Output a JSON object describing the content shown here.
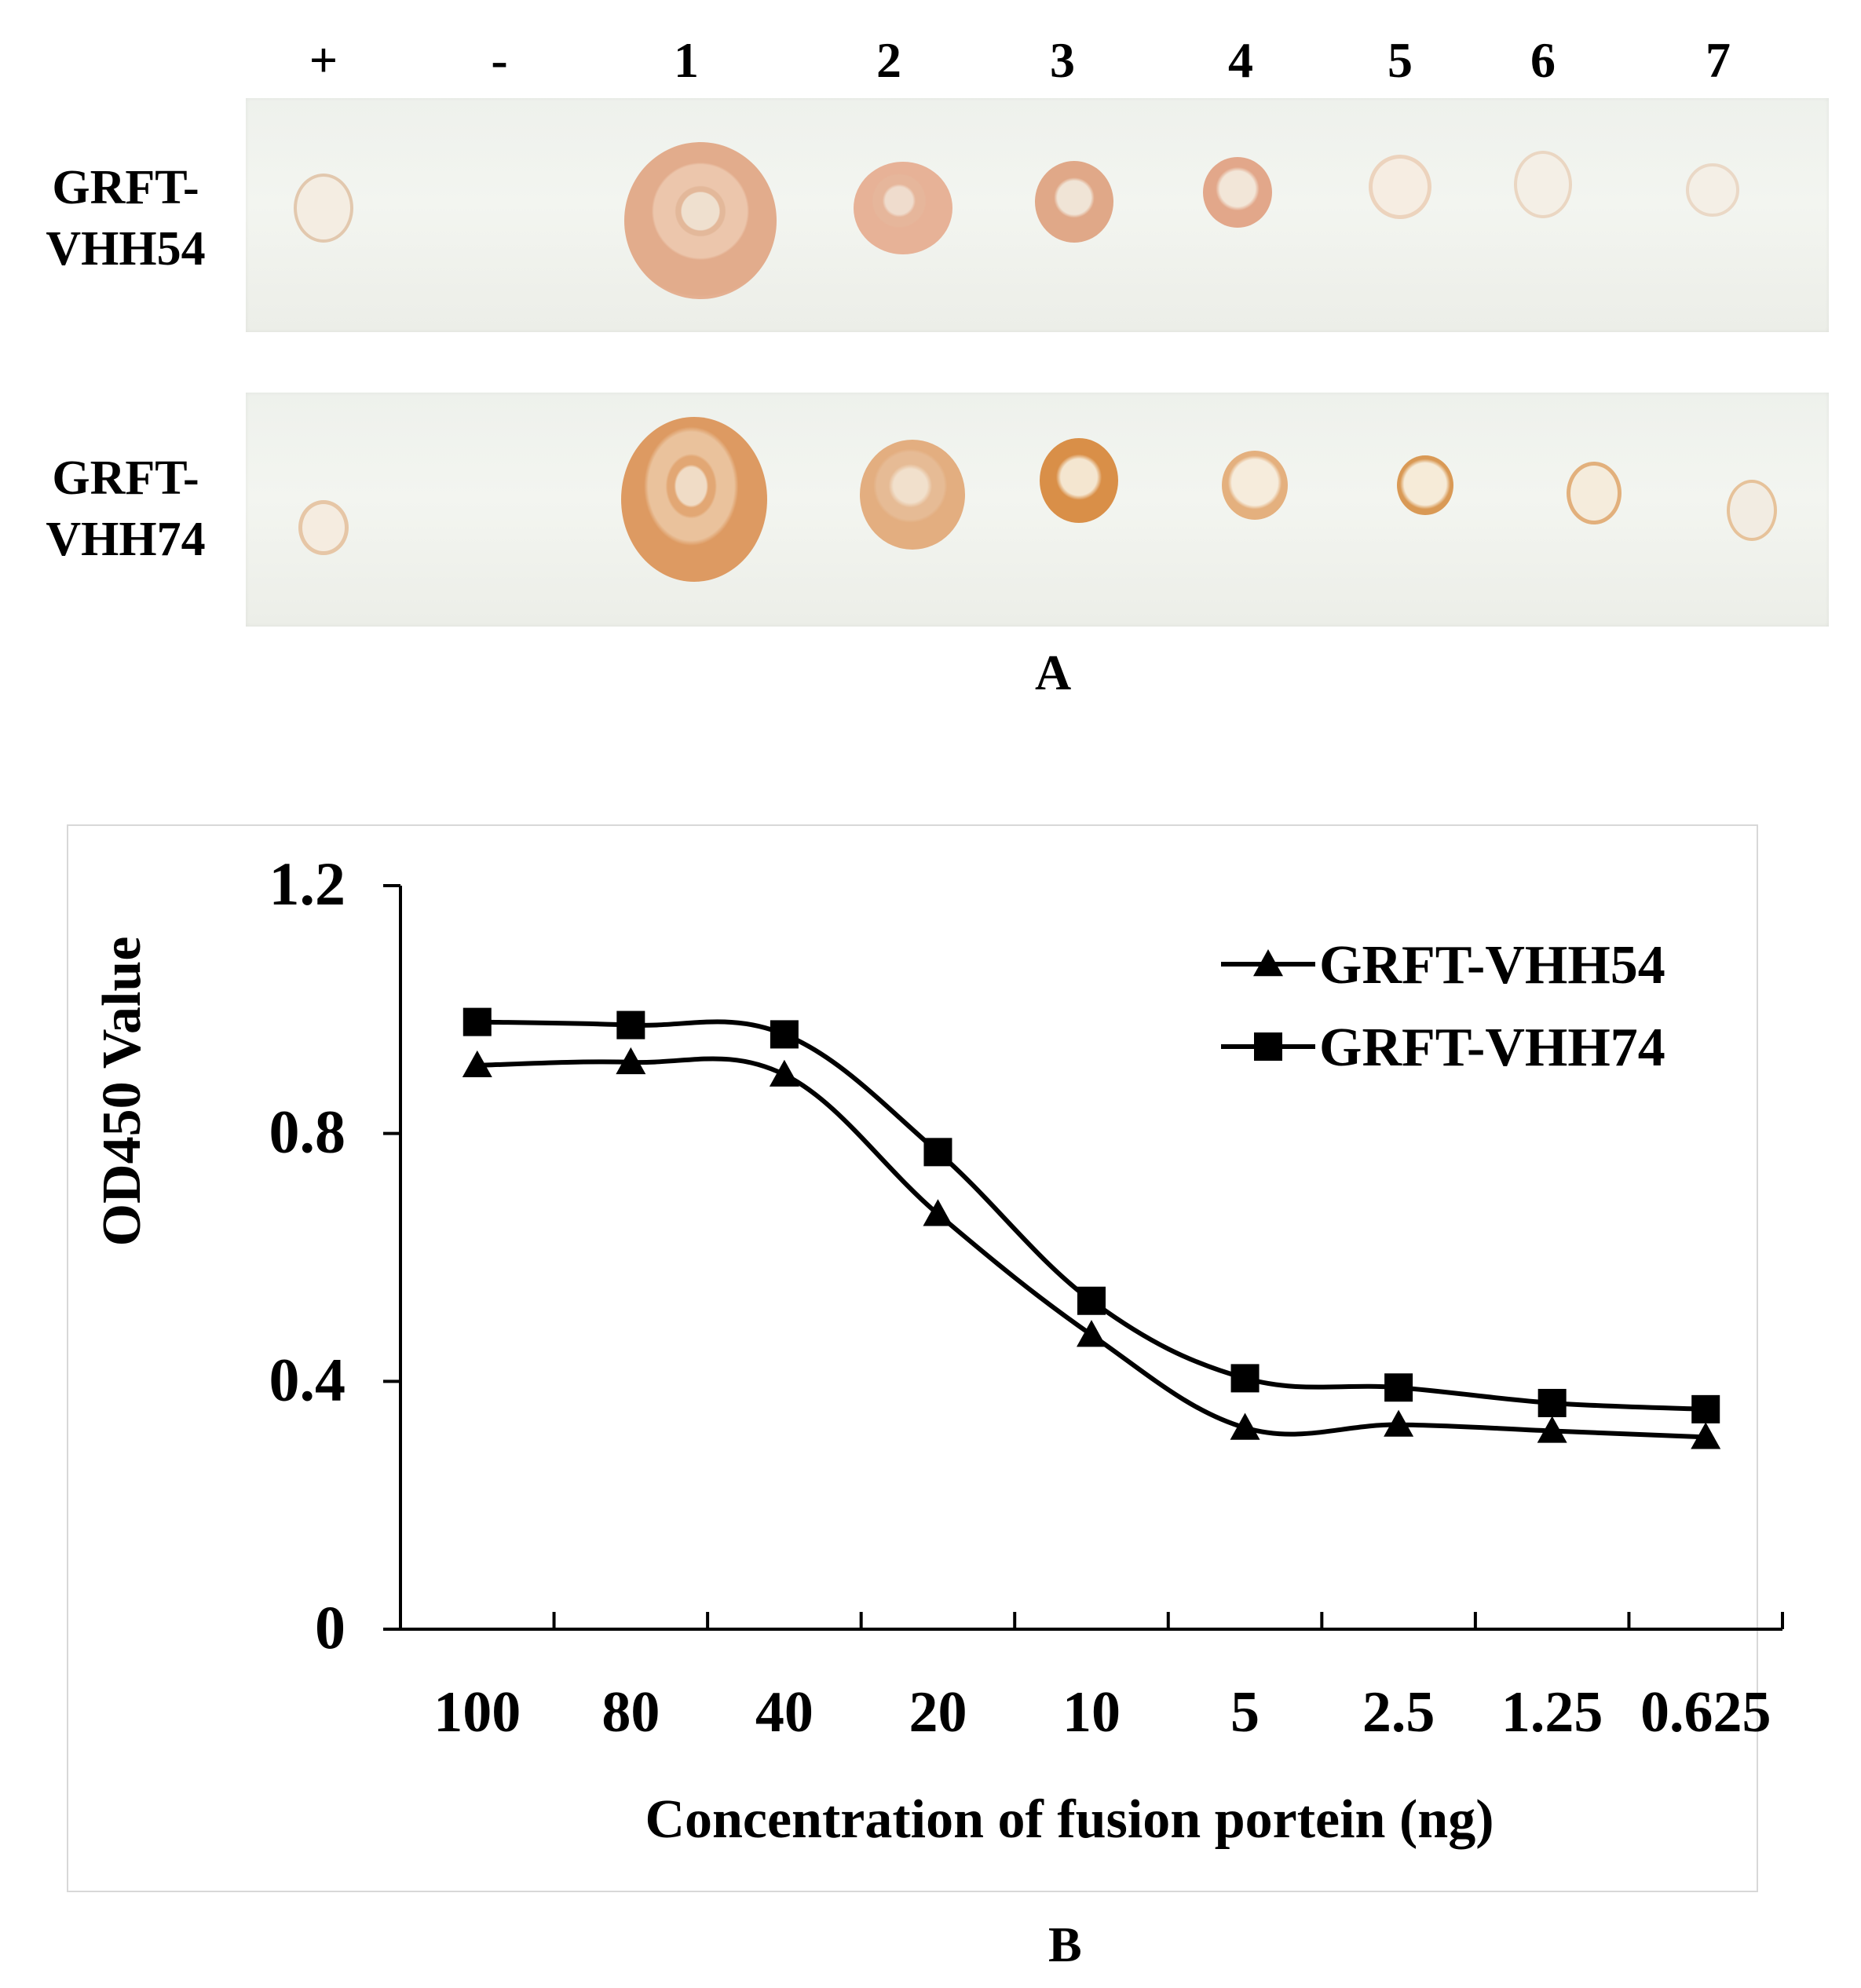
{
  "panel_a": {
    "lane_labels": [
      "+",
      "-",
      "1",
      "2",
      "3",
      "4",
      "5",
      "6",
      "7"
    ],
    "rows": [
      {
        "label_line1": "GRFT-",
        "label_line2": "VHH54"
      },
      {
        "label_line1": "GRFT-",
        "label_line2": "VHH74"
      }
    ],
    "caption": "A",
    "spot_color": "#d89a6a"
  },
  "panel_b_caption": "B",
  "chart_data": {
    "type": "line",
    "categories": [
      "100",
      "80",
      "40",
      "20",
      "10",
      "5",
      "2.5",
      "1.25",
      "0.625"
    ],
    "series": [
      {
        "name": "GRFT-VHH54",
        "marker": "triangle",
        "values": [
          0.91,
          0.915,
          0.895,
          0.67,
          0.475,
          0.325,
          0.33,
          0.32,
          0.31
        ]
      },
      {
        "name": "GRFT-VHH74",
        "marker": "square",
        "values": [
          0.98,
          0.975,
          0.96,
          0.77,
          0.53,
          0.405,
          0.39,
          0.365,
          0.355
        ]
      }
    ],
    "ylim": [
      0,
      1.2
    ],
    "yticks": [
      "0",
      "0.4",
      "0.8",
      "1.2"
    ],
    "ytick_values": [
      0,
      0.4,
      0.8,
      1.2
    ],
    "xlabel": "Concentration of fusion portein (ng)",
    "ylabel": "OD450 Value",
    "legend_position": "top-right",
    "line_color": "#000000"
  }
}
